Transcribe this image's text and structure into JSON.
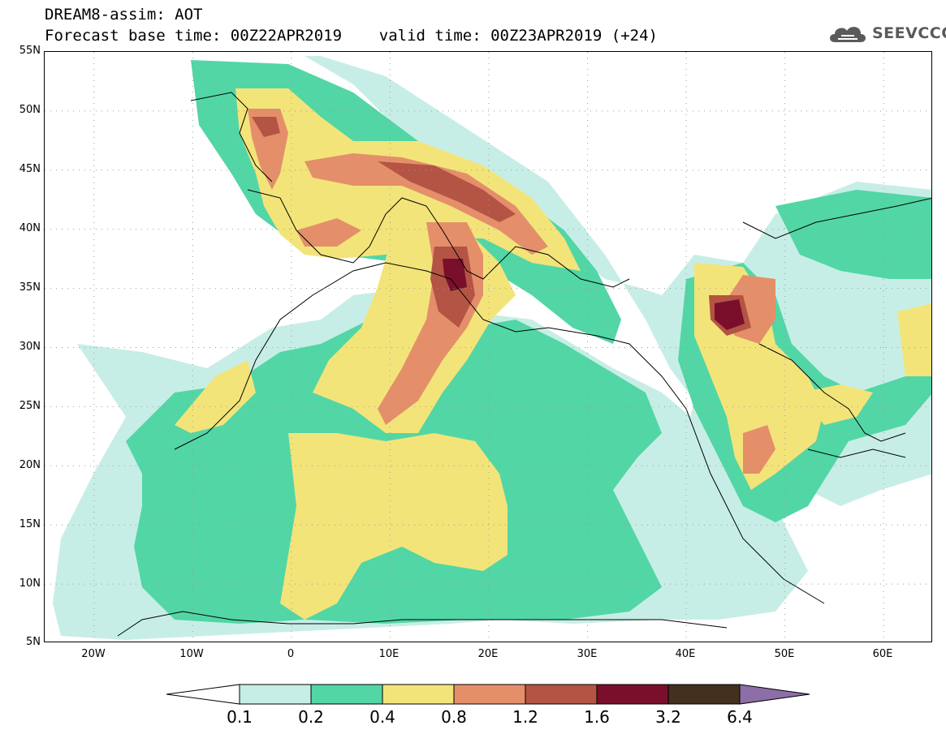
{
  "header": {
    "title_line1": "DREAM8-assim: AOT",
    "title_line2": "Forecast base time: 00Z22APR2019    valid time: 00Z23APR2019 (+24)"
  },
  "logo": {
    "text": "SEEVCCC",
    "icon": "cloud-icon"
  },
  "map": {
    "lat_labels": [
      "55N",
      "50N",
      "45N",
      "40N",
      "35N",
      "30N",
      "25N",
      "20N",
      "15N",
      "10N",
      "5N"
    ],
    "lon_labels": [
      "20W",
      "10W",
      "0",
      "10E",
      "20E",
      "30E",
      "40E",
      "50E",
      "60E"
    ],
    "lat_range": [
      5,
      55
    ],
    "lon_range": [
      -25,
      65
    ],
    "gridlines": "dotted"
  },
  "colorbar": {
    "levels": [
      "0.1",
      "0.2",
      "0.4",
      "0.8",
      "1.2",
      "1.6",
      "3.2",
      "6.4"
    ],
    "colors": [
      "#ffffff",
      "#c7eee6",
      "#52d6a5",
      "#f3e47a",
      "#e48f6a",
      "#b45444",
      "#7a0f2c",
      "#43301f",
      "#8e6ea6"
    ]
  }
}
